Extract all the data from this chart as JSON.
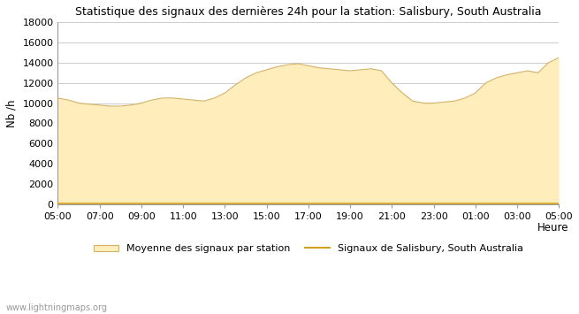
{
  "title": "Statistique des signaux des dernières 24h pour la station: Salisbury, South Australia",
  "xlabel": "Heure",
  "ylabel": "Nb /h",
  "ylim": [
    0,
    18000
  ],
  "yticks": [
    0,
    2000,
    4000,
    6000,
    8000,
    10000,
    12000,
    14000,
    16000,
    18000
  ],
  "xticks_labels": [
    "05:00",
    "07:00",
    "09:00",
    "11:00",
    "13:00",
    "15:00",
    "17:00",
    "19:00",
    "21:00",
    "23:00",
    "01:00",
    "03:00",
    "05:00"
  ],
  "fill_color": "#ffeebb",
  "fill_edge_color": "#d4b060",
  "line_color": "#d4a020",
  "background_color": "#ffffff",
  "grid_color": "#cccccc",
  "watermark": "www.lightningmaps.org",
  "legend_fill_label": "Moyenne des signaux par station",
  "legend_line_label": "Signaux de Salisbury, South Australia",
  "avg_times": [
    0,
    0.5,
    1,
    1.5,
    2,
    2.5,
    3,
    3.5,
    4,
    4.5,
    5,
    5.5,
    6,
    6.5,
    7,
    7.5,
    8,
    8.5,
    9,
    9.5,
    10,
    10.5,
    11,
    11.5,
    12,
    12.5,
    13,
    13.5,
    14,
    14.5,
    15,
    15.5,
    16,
    16.5,
    17,
    17.5,
    18,
    18.5,
    19,
    19.5,
    20,
    20.5,
    21,
    21.5,
    22,
    22.5,
    23,
    23.5,
    24
  ],
  "avg_values": [
    10500,
    10300,
    10000,
    9900,
    9800,
    9700,
    9700,
    9800,
    10000,
    10300,
    10500,
    10500,
    10400,
    10300,
    10200,
    10500,
    11000,
    11800,
    12500,
    13000,
    13300,
    13600,
    13800,
    13900,
    13700,
    13500,
    13400,
    13300,
    13200,
    13300,
    13400,
    13200,
    12000,
    11000,
    10200,
    10000,
    10000,
    10100,
    10200,
    10500,
    11000,
    12000,
    12500,
    12800,
    13000,
    13200,
    13000,
    14000,
    14500
  ],
  "station_times": [
    0,
    24
  ],
  "station_values": [
    80,
    80
  ]
}
